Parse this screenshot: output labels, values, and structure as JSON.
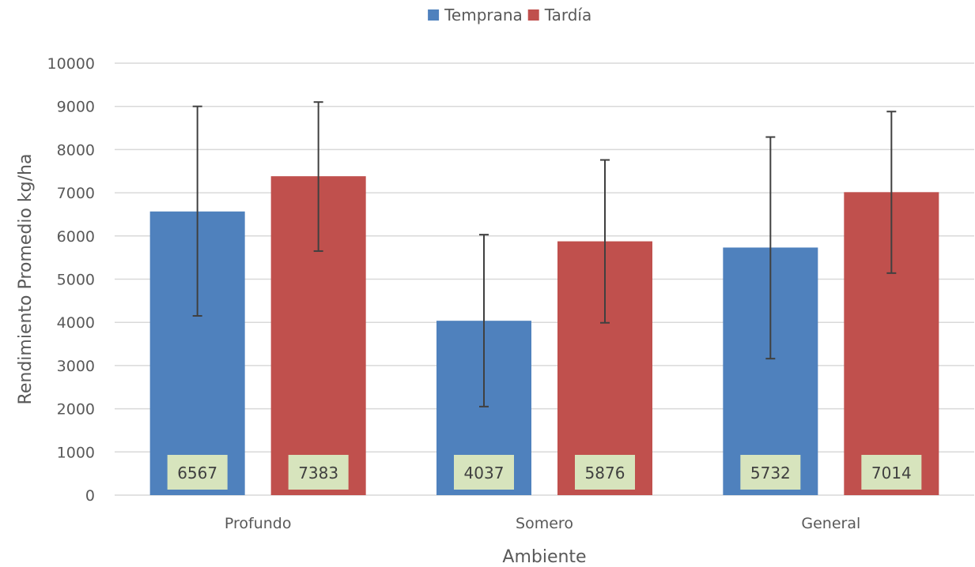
{
  "chart_data": {
    "type": "bar",
    "title": "",
    "xlabel": "Ambiente",
    "ylabel": "Rendimiento Promedio kg/ha",
    "categories": [
      "Profundo",
      "Somero",
      "General"
    ],
    "series": [
      {
        "name": "Temprana",
        "color": "#4F81BD",
        "values": [
          6567,
          4037,
          5732
        ],
        "error_low": [
          4150,
          2050,
          3160
        ],
        "error_high": [
          9000,
          6030,
          8290
        ]
      },
      {
        "name": "Tardía",
        "color": "#C0504D",
        "values": [
          7383,
          5876,
          7014
        ],
        "error_low": [
          5650,
          3990,
          5140
        ],
        "error_high": [
          9100,
          7760,
          8880
        ]
      }
    ],
    "data_labels": [
      "6567",
      "7383",
      "4037",
      "5876",
      "5732",
      "7014"
    ],
    "ylim": [
      0,
      10000
    ],
    "yticks": [
      0,
      1000,
      2000,
      3000,
      4000,
      5000,
      6000,
      7000,
      8000,
      9000,
      10000
    ],
    "grid": true,
    "legend_position": "top",
    "data_label_background": "#D7E4BD",
    "error_bar_color": "#404040",
    "gridline_color": "#D9D9D9"
  }
}
